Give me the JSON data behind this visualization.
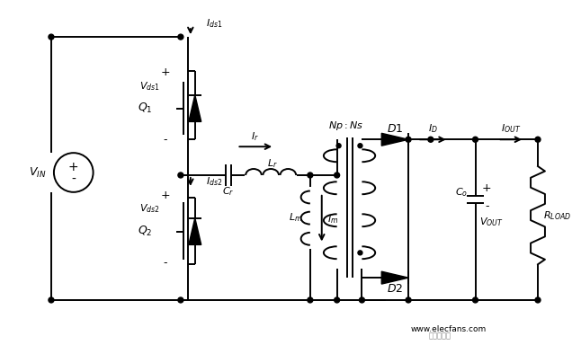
{
  "bg_color": "#ffffff",
  "line_color": "#000000",
  "text_color": "#000000",
  "lw": 1.4
}
